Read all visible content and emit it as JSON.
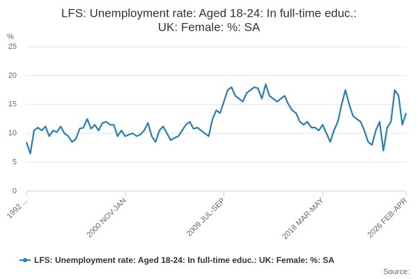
{
  "chart_data": {
    "type": "line",
    "title": [
      "LFS: Unemployment rate: Aged 18-24: In full-time educ.:",
      "UK: Female: %: SA"
    ],
    "y_label": "%",
    "source": "Source:",
    "categories": [
      "1992 ...",
      null,
      null,
      null,
      null,
      null,
      null,
      null,
      null,
      null,
      null,
      null,
      null,
      null,
      null,
      null,
      null,
      null,
      null,
      null,
      null,
      null,
      null,
      null,
      null,
      null,
      "2000 NOV-JAN",
      null,
      null,
      null,
      null,
      null,
      null,
      null,
      null,
      null,
      null,
      null,
      null,
      null,
      null,
      null,
      null,
      null,
      null,
      null,
      null,
      null,
      null,
      null,
      null,
      null,
      "2009 JUL-SEP",
      null,
      null,
      null,
      null,
      null,
      null,
      null,
      null,
      null,
      null,
      null,
      null,
      null,
      null,
      null,
      null,
      null,
      null,
      null,
      null,
      null,
      null,
      null,
      null,
      null,
      "2018 MAR-MAY",
      null,
      null,
      null,
      null,
      null,
      null,
      null,
      null,
      null,
      null,
      null,
      null,
      null,
      null,
      null,
      null,
      null,
      null,
      null,
      null,
      null,
      "2026 FEB-APR"
    ],
    "series": [
      {
        "name": "LFS: Unemployment rate: Aged 18-24: In full-time educ.: UK: Female: %: SA",
        "color": "#1f7fbf",
        "values": [
          8.5,
          6.5,
          10.5,
          11,
          10.5,
          11.2,
          9.5,
          10.5,
          10.2,
          11.2,
          10,
          9.5,
          8.5,
          9,
          10.8,
          11,
          12.5,
          10.8,
          11.5,
          10.5,
          11.8,
          12,
          11.5,
          11.5,
          9.5,
          10.5,
          9.5,
          9.8,
          10,
          9.5,
          9.8,
          10.5,
          11.8,
          9.5,
          8.5,
          10.5,
          11.2,
          10,
          8.8,
          9.2,
          9.5,
          10.5,
          11.5,
          12,
          10.8,
          11,
          10.5,
          10,
          9.5,
          12.5,
          14,
          13.5,
          15.5,
          17.5,
          18,
          16.5,
          16,
          15.5,
          17,
          17.5,
          18,
          17.8,
          16,
          18.5,
          16.5,
          16,
          15.5,
          16,
          16.5,
          15,
          14,
          13.5,
          12,
          11.5,
          12,
          11,
          11,
          10.5,
          11.5,
          10,
          8.5,
          10.5,
          12,
          15,
          17.5,
          15,
          13,
          12.5,
          12,
          10.5,
          8.5,
          8,
          10.5,
          12,
          7,
          11,
          12,
          17.5,
          16.5,
          11.5,
          13.5
        ]
      }
    ],
    "ylim": [
      0,
      25
    ],
    "yticks": [
      0,
      5,
      10,
      15,
      20,
      25
    ],
    "grid": true
  }
}
